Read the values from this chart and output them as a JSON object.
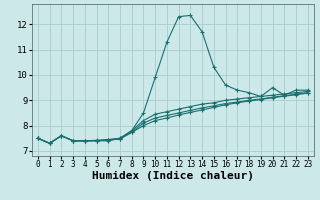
{
  "background_color": "#cce8e8",
  "grid_color": "#aacccc",
  "line_color": "#1a7070",
  "xlabel": "Humidex (Indice chaleur)",
  "xlim": [
    -0.5,
    23.5
  ],
  "ylim": [
    6.8,
    12.8
  ],
  "yticks": [
    7,
    8,
    9,
    10,
    11,
    12
  ],
  "xticks": [
    0,
    1,
    2,
    3,
    4,
    5,
    6,
    7,
    8,
    9,
    10,
    11,
    12,
    13,
    14,
    15,
    16,
    17,
    18,
    19,
    20,
    21,
    22,
    23
  ],
  "lines": [
    {
      "x": [
        0,
        1,
        2,
        3,
        4,
        5,
        6,
        7,
        8,
        9,
        10,
        11,
        12,
        13,
        14,
        15,
        16,
        17,
        18,
        19,
        20,
        21,
        22,
        23
      ],
      "y": [
        7.5,
        7.3,
        7.6,
        7.4,
        7.4,
        7.4,
        7.4,
        7.5,
        7.8,
        8.5,
        9.9,
        11.3,
        12.3,
        12.35,
        11.7,
        10.3,
        9.6,
        9.4,
        9.3,
        9.15,
        9.5,
        9.2,
        9.4,
        9.4
      ]
    },
    {
      "x": [
        0,
        1,
        2,
        3,
        4,
        5,
        6,
        7,
        8,
        9,
        10,
        11,
        12,
        13,
        14,
        15,
        16,
        17,
        18,
        19,
        20,
        21,
        22,
        23
      ],
      "y": [
        7.5,
        7.3,
        7.6,
        7.4,
        7.4,
        7.4,
        7.45,
        7.5,
        7.8,
        8.2,
        8.45,
        8.55,
        8.65,
        8.75,
        8.85,
        8.9,
        9.0,
        9.05,
        9.1,
        9.15,
        9.2,
        9.25,
        9.3,
        9.35
      ]
    },
    {
      "x": [
        0,
        1,
        2,
        3,
        4,
        5,
        6,
        7,
        8,
        9,
        10,
        11,
        12,
        13,
        14,
        15,
        16,
        17,
        18,
        19,
        20,
        21,
        22,
        23
      ],
      "y": [
        7.5,
        7.3,
        7.6,
        7.4,
        7.4,
        7.42,
        7.44,
        7.48,
        7.75,
        8.1,
        8.3,
        8.4,
        8.5,
        8.6,
        8.7,
        8.78,
        8.87,
        8.93,
        9.0,
        9.05,
        9.12,
        9.18,
        9.24,
        9.3
      ]
    },
    {
      "x": [
        0,
        1,
        2,
        3,
        4,
        5,
        6,
        7,
        8,
        9,
        10,
        11,
        12,
        13,
        14,
        15,
        16,
        17,
        18,
        19,
        20,
        21,
        22,
        23
      ],
      "y": [
        7.5,
        7.3,
        7.6,
        7.4,
        7.4,
        7.41,
        7.43,
        7.47,
        7.73,
        8.0,
        8.2,
        8.3,
        8.42,
        8.52,
        8.62,
        8.72,
        8.82,
        8.9,
        8.97,
        9.03,
        9.1,
        9.16,
        9.22,
        9.28
      ]
    }
  ]
}
